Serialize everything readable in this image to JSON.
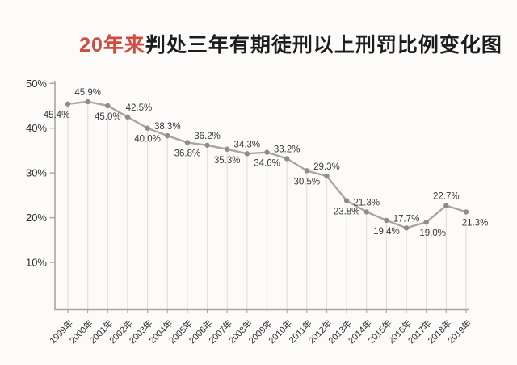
{
  "title": {
    "highlight": "20年来",
    "rest": "判处三年有期徒刑以上刑罚比例变化图"
  },
  "colors": {
    "background": "#fcfbf9",
    "title_highlight": "#d14b3f",
    "title_text": "#1d1d1d",
    "series_line": "#a9a7a4",
    "series_dot": "#8f8d8a",
    "grid_stem": "#e3e0dc",
    "axis": "#aaa7a3",
    "value_label": "#3a3a3a",
    "tick_label": "#2f2f2f"
  },
  "chart_data": {
    "type": "line",
    "title": "20年来判处三年有期徒刑以上刑罚比例变化图",
    "categories": [
      "1999年",
      "2000年",
      "2001年",
      "2002年",
      "2003年",
      "2004年",
      "2005年",
      "2006年",
      "2007年",
      "2008年",
      "2009年",
      "2010年",
      "2011年",
      "2012年",
      "2013年",
      "2014年",
      "2015年",
      "2016年",
      "2017年",
      "2018年",
      "2019年"
    ],
    "values": [
      45.4,
      45.9,
      45.0,
      42.5,
      40.0,
      38.3,
      36.8,
      36.2,
      35.3,
      34.3,
      34.6,
      33.2,
      30.5,
      29.3,
      23.8,
      21.3,
      19.4,
      17.7,
      19.0,
      22.7,
      21.3
    ],
    "point_labels": [
      "45.4%",
      "45.9%",
      "45.0%",
      "42.5%",
      "40.0%",
      "38.3%",
      "36.8%",
      "36.2%",
      "35.3%",
      "34.3%",
      "34.6%",
      "33.2%",
      "30.5%",
      "29.3%",
      "23.8%",
      "21.3%",
      "19.4%",
      "17.7%",
      "19.0%",
      "22.7%",
      "21.3%"
    ],
    "xlabel": "",
    "ylabel": "",
    "yticks": {
      "values": [
        50,
        40,
        30,
        20,
        10
      ],
      "labels": [
        "50%",
        "40%",
        "30%",
        "20%",
        "10%"
      ]
    },
    "ylim": [
      0,
      52
    ],
    "grid": "vertical drop-stems from each data point to x-axis",
    "legend": "none"
  }
}
